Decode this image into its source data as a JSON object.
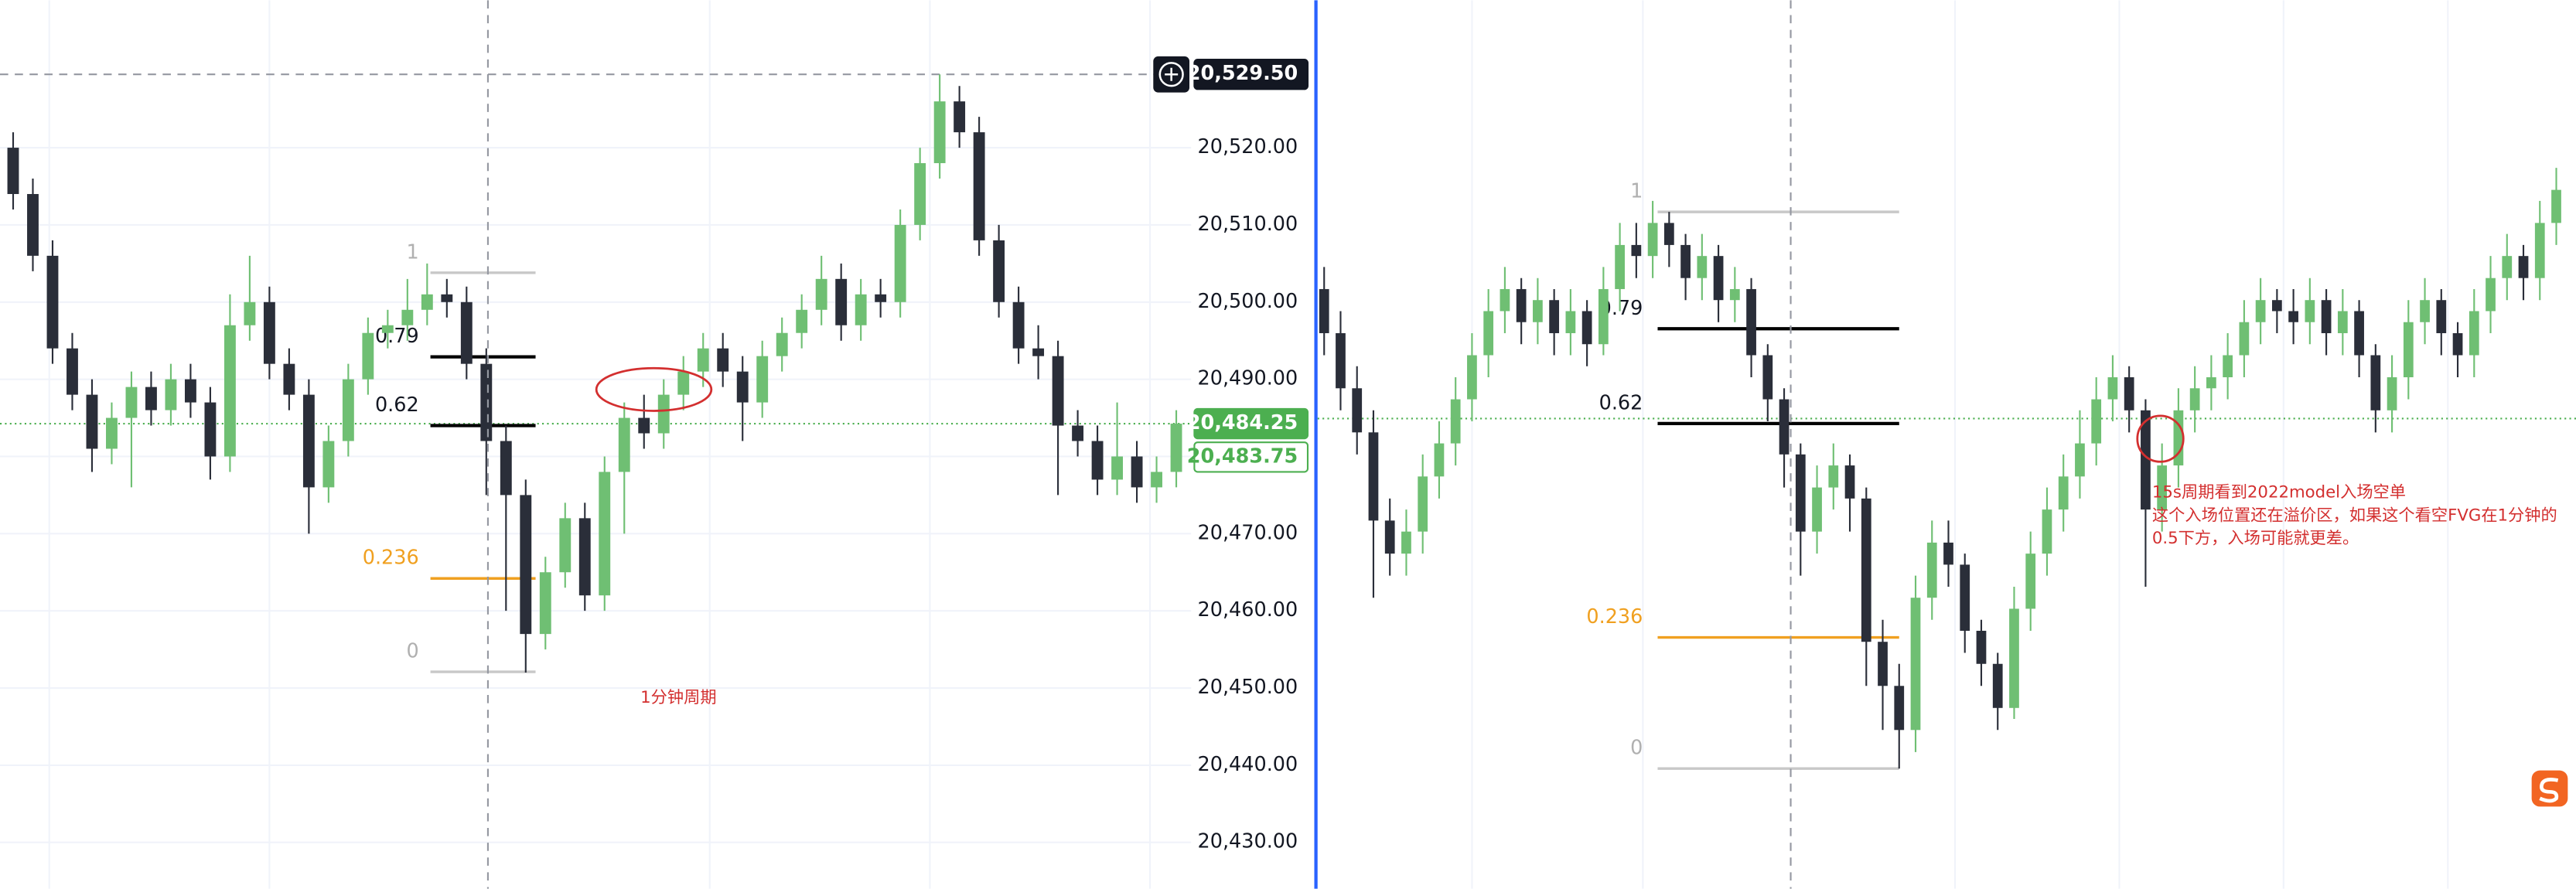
{
  "chart_data": [
    {
      "type": "candlestick",
      "ylim": [
        20424,
        20539.1
      ],
      "yticks": [
        {
          "value": 20430,
          "label": "20,430.00"
        },
        {
          "value": 20440,
          "label": "20,440.00"
        },
        {
          "value": 20450,
          "label": "20,450.00"
        },
        {
          "value": 20460,
          "label": "20,460.00"
        },
        {
          "value": 20470,
          "label": "20,470.00"
        },
        {
          "value": 20480,
          "label": "20,480.00"
        },
        {
          "value": 20490,
          "label": "20,490.00"
        },
        {
          "value": 20500,
          "label": "20,500.00"
        },
        {
          "value": 20510,
          "label": "20,510.00"
        },
        {
          "value": 20520,
          "label": "20,520.00"
        }
      ],
      "price_labels": [
        {
          "value": 20529.5,
          "label": "20,529.50",
          "color": "#131722"
        },
        {
          "value": 20484.25,
          "label": "20,484.25",
          "color": "#4caf50"
        },
        {
          "value": 20483.75,
          "label": "20,483.75",
          "color": "#ffffff"
        }
      ],
      "fib": [
        {
          "level": 1,
          "price": 20503.8,
          "color": "#c8c8c8"
        },
        {
          "level": 0.79,
          "price": 20492.9,
          "color": "#000000"
        },
        {
          "level": 0.62,
          "price": 20484,
          "color": "#000000"
        },
        {
          "level": 0.236,
          "price": 20464.2,
          "color": "#f0a020"
        },
        {
          "level": 0,
          "price": 20452.1,
          "color": "#c8c8c8"
        }
      ],
      "annotation": [
        "1分钟周期"
      ],
      "up_color": "#6fbf73",
      "down_color": "#2a2e39",
      "candles": [
        [
          20520,
          20522,
          20512,
          20514
        ],
        [
          20514,
          20516,
          20504,
          20506
        ],
        [
          20506,
          20508,
          20492,
          20494
        ],
        [
          20494,
          20496,
          20486,
          20488
        ],
        [
          20488,
          20490,
          20478,
          20481
        ],
        [
          20481,
          20487,
          20479,
          20485
        ],
        [
          20485,
          20491,
          20476,
          20489
        ],
        [
          20489,
          20491,
          20484,
          20486
        ],
        [
          20486,
          20492,
          20484,
          20490
        ],
        [
          20490,
          20492,
          20485,
          20487
        ],
        [
          20487,
          20489,
          20477,
          20480
        ],
        [
          20480,
          20501,
          20478,
          20497
        ],
        [
          20497,
          20506,
          20495,
          20500
        ],
        [
          20500,
          20502,
          20490,
          20492
        ],
        [
          20492,
          20494,
          20486,
          20488
        ],
        [
          20488,
          20490,
          20470,
          20476
        ],
        [
          20476,
          20484,
          20474,
          20482
        ],
        [
          20482,
          20492,
          20480,
          20490
        ],
        [
          20490,
          20498,
          20488,
          20496
        ],
        [
          20496,
          20499,
          20494,
          20497
        ],
        [
          20497,
          20503,
          20495,
          20499
        ],
        [
          20499,
          20505,
          20497,
          20501
        ],
        [
          20501,
          20503,
          20498,
          20500
        ],
        [
          20500,
          20502,
          20490,
          20492
        ],
        [
          20492,
          20494,
          20475,
          20482
        ],
        [
          20482,
          20484,
          20460,
          20475
        ],
        [
          20475,
          20477,
          20452,
          20457
        ],
        [
          20457,
          20467,
          20455,
          20465
        ],
        [
          20465,
          20474,
          20463,
          20472
        ],
        [
          20472,
          20474,
          20460,
          20462
        ],
        [
          20462,
          20480,
          20460,
          20478
        ],
        [
          20478,
          20487,
          20470,
          20485
        ],
        [
          20485,
          20488,
          20481,
          20483
        ],
        [
          20483,
          20490,
          20481,
          20488
        ],
        [
          20488,
          20493,
          20486,
          20491
        ],
        [
          20491,
          20496,
          20489,
          20494
        ],
        [
          20494,
          20496,
          20489,
          20491
        ],
        [
          20491,
          20493,
          20482,
          20487
        ],
        [
          20487,
          20495,
          20485,
          20493
        ],
        [
          20493,
          20498,
          20491,
          20496
        ],
        [
          20496,
          20501,
          20494,
          20499
        ],
        [
          20499,
          20506,
          20497,
          20503
        ],
        [
          20503,
          20505,
          20495,
          20497
        ],
        [
          20497,
          20503,
          20495,
          20501
        ],
        [
          20501,
          20503,
          20498,
          20500
        ],
        [
          20500,
          20512,
          20498,
          20510
        ],
        [
          20510,
          20520,
          20508,
          20518
        ],
        [
          20518,
          20529.5,
          20516,
          20526
        ],
        [
          20526,
          20528,
          20520,
          20522
        ],
        [
          20522,
          20524,
          20506,
          20508
        ],
        [
          20508,
          20510,
          20498,
          20500
        ],
        [
          20500,
          20502,
          20492,
          20494
        ],
        [
          20494,
          20497,
          20490,
          20493
        ],
        [
          20493,
          20495,
          20475,
          20484
        ],
        [
          20484,
          20486,
          20480,
          20482
        ],
        [
          20482,
          20484,
          20475,
          20477
        ],
        [
          20477,
          20487,
          20475,
          20480
        ],
        [
          20480,
          20482,
          20474,
          20476
        ],
        [
          20476,
          20480,
          20474,
          20478
        ],
        [
          20478,
          20486,
          20476,
          20484.25
        ]
      ]
    },
    {
      "type": "candlestick",
      "ylim": [
        20441.6,
        20522.2
      ],
      "fib": [
        {
          "level": 1,
          "price": 20503,
          "color": "#c8c8c8"
        },
        {
          "level": 0.79,
          "price": 20492.4,
          "color": "#000000"
        },
        {
          "level": 0.62,
          "price": 20483.8,
          "color": "#000000"
        },
        {
          "level": 0.236,
          "price": 20464.4,
          "color": "#f0a020"
        },
        {
          "level": 0,
          "price": 20452.5,
          "color": "#c8c8c8"
        }
      ],
      "annotation": [
        "15s周期看到2022model入场空单",
        "这个入场位置还在溢价区，如果这个看空FVG在1分钟的",
        "0.5下方，入场可能就更差。"
      ],
      "up_color": "#6fbf73",
      "down_color": "#2a2e39",
      "candles": [
        [
          20496,
          20498,
          20490,
          20492
        ],
        [
          20492,
          20494,
          20485,
          20487
        ],
        [
          20487,
          20489,
          20481,
          20483
        ],
        [
          20483,
          20485,
          20468,
          20475
        ],
        [
          20475,
          20477,
          20470,
          20472
        ],
        [
          20472,
          20476,
          20470,
          20474
        ],
        [
          20474,
          20481,
          20472,
          20479
        ],
        [
          20479,
          20484,
          20477,
          20482
        ],
        [
          20482,
          20488,
          20480,
          20486
        ],
        [
          20486,
          20492,
          20484,
          20490
        ],
        [
          20490,
          20496,
          20488,
          20494
        ],
        [
          20494,
          20498,
          20492,
          20496
        ],
        [
          20496,
          20497,
          20491,
          20493
        ],
        [
          20493,
          20497,
          20491,
          20495
        ],
        [
          20495,
          20496,
          20490,
          20492
        ],
        [
          20492,
          20496,
          20490,
          20494
        ],
        [
          20494,
          20495,
          20489,
          20491
        ],
        [
          20491,
          20498,
          20490,
          20496
        ],
        [
          20496,
          20502,
          20494,
          20500
        ],
        [
          20500,
          20502,
          20497,
          20499
        ],
        [
          20499,
          20504,
          20497,
          20502
        ],
        [
          20502,
          20503,
          20498,
          20500
        ],
        [
          20500,
          20501,
          20495,
          20497
        ],
        [
          20497,
          20501,
          20495,
          20499
        ],
        [
          20499,
          20500,
          20493,
          20495
        ],
        [
          20495,
          20498,
          20493,
          20496
        ],
        [
          20496,
          20497,
          20488,
          20490
        ],
        [
          20490,
          20491,
          20484,
          20486
        ],
        [
          20486,
          20487,
          20478,
          20481
        ],
        [
          20481,
          20482,
          20470,
          20474
        ],
        [
          20474,
          20480,
          20472,
          20478
        ],
        [
          20478,
          20482,
          20476,
          20480
        ],
        [
          20480,
          20481,
          20474,
          20477
        ],
        [
          20477,
          20478,
          20460,
          20464
        ],
        [
          20464,
          20466,
          20456,
          20460
        ],
        [
          20460,
          20462,
          20452.5,
          20456
        ],
        [
          20456,
          20470,
          20454,
          20468
        ],
        [
          20468,
          20475,
          20466,
          20473
        ],
        [
          20473,
          20475,
          20469,
          20471
        ],
        [
          20471,
          20472,
          20463,
          20465
        ],
        [
          20465,
          20466,
          20460,
          20462
        ],
        [
          20462,
          20463,
          20456,
          20458
        ],
        [
          20458,
          20469,
          20457,
          20467
        ],
        [
          20467,
          20474,
          20465,
          20472
        ],
        [
          20472,
          20478,
          20470,
          20476
        ],
        [
          20476,
          20481,
          20474,
          20479
        ],
        [
          20479,
          20485,
          20477,
          20482
        ],
        [
          20482,
          20488,
          20480,
          20486
        ],
        [
          20486,
          20490,
          20484,
          20488
        ],
        [
          20488,
          20489,
          20483,
          20485
        ],
        [
          20485,
          20486,
          20469,
          20476
        ],
        [
          20476,
          20482,
          20474,
          20480
        ],
        [
          20480,
          20487,
          20478,
          20485
        ],
        [
          20485,
          20489,
          20483,
          20487
        ],
        [
          20487,
          20490,
          20485,
          20488
        ],
        [
          20488,
          20492,
          20486,
          20490
        ],
        [
          20490,
          20495,
          20488,
          20493
        ],
        [
          20493,
          20497,
          20491,
          20495
        ],
        [
          20495,
          20496,
          20492,
          20494
        ],
        [
          20494,
          20496,
          20491,
          20493
        ],
        [
          20493,
          20497,
          20491,
          20495
        ],
        [
          20495,
          20496,
          20490,
          20492
        ],
        [
          20492,
          20496,
          20490,
          20494
        ],
        [
          20494,
          20495,
          20488,
          20490
        ],
        [
          20490,
          20491,
          20483,
          20485
        ],
        [
          20485,
          20490,
          20483,
          20488
        ],
        [
          20488,
          20495,
          20486,
          20493
        ],
        [
          20493,
          20497,
          20491,
          20495
        ],
        [
          20495,
          20496,
          20490,
          20492
        ],
        [
          20492,
          20493,
          20488,
          20490
        ],
        [
          20490,
          20496,
          20488,
          20494
        ],
        [
          20494,
          20499,
          20492,
          20497
        ],
        [
          20497,
          20501,
          20495,
          20499
        ],
        [
          20499,
          20500,
          20495,
          20497
        ],
        [
          20497,
          20504,
          20495,
          20502
        ],
        [
          20502,
          20507,
          20500,
          20505
        ]
      ]
    }
  ]
}
